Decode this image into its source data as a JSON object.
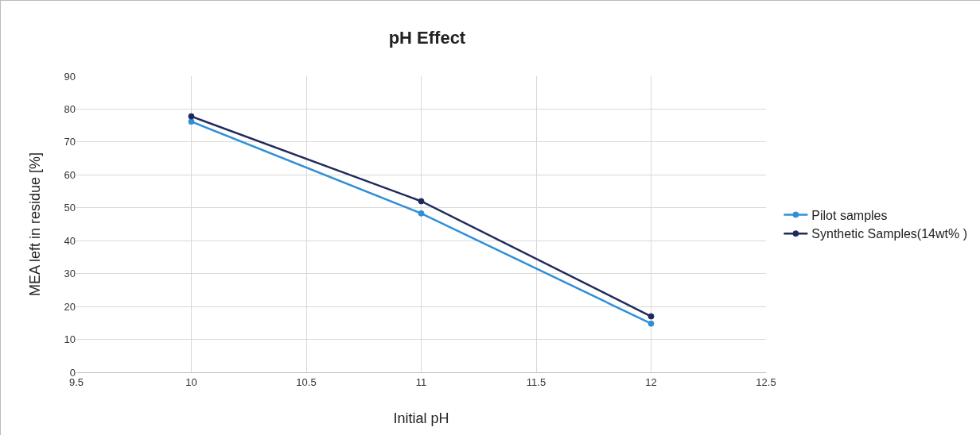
{
  "chart_data": {
    "type": "line",
    "title": "pH Effect",
    "xlabel": "Initial pH",
    "ylabel": "MEA left in residue [%]",
    "x": [
      10,
      11,
      12
    ],
    "series": [
      {
        "name": "Pilot samples",
        "color": "#2f8fd8",
        "values": [
          76.2,
          48.3,
          14.8
        ]
      },
      {
        "name": "Synthetic Samples(14wt% )",
        "color": "#1f2a5c",
        "values": [
          77.8,
          52,
          17
        ]
      }
    ],
    "xlim": [
      9.5,
      12.5
    ],
    "xticks": [
      9.5,
      10,
      10.5,
      11,
      11.5,
      12,
      12.5
    ],
    "ylim": [
      0,
      90
    ],
    "yticks": [
      0,
      10,
      20,
      30,
      40,
      50,
      60,
      70,
      80,
      90
    ],
    "grid": true,
    "legend": "right",
    "marker": "circle",
    "line_style": "solid"
  }
}
